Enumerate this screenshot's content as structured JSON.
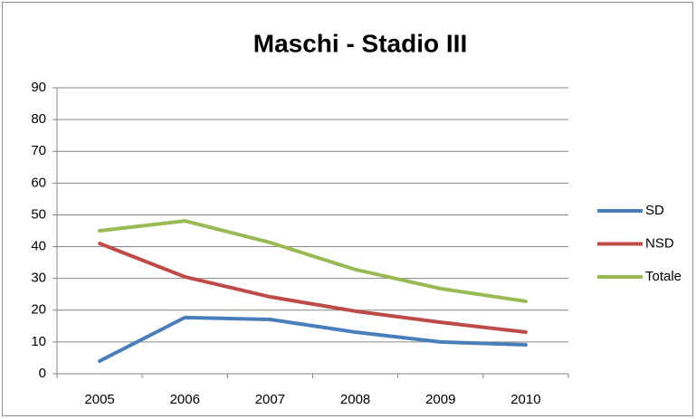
{
  "chart_data": {
    "type": "line",
    "title": "Maschi - Stadio III",
    "categories": [
      "2005",
      "2006",
      "2007",
      "2008",
      "2009",
      "2010"
    ],
    "series": [
      {
        "name": "SD",
        "color": "#4a7ebb",
        "values": [
          4,
          17.7,
          17.1,
          13.1,
          10,
          9.1
        ]
      },
      {
        "name": "NSD",
        "color": "#be4b48",
        "values": [
          41,
          30.5,
          24.2,
          19.7,
          16.2,
          13.1
        ]
      },
      {
        "name": "Totale",
        "color": "#98b954",
        "values": [
          45,
          48.1,
          41.3,
          32.8,
          26.8,
          22.8
        ]
      }
    ],
    "ylim": [
      0,
      90
    ],
    "yticks": [
      0,
      10,
      20,
      30,
      40,
      50,
      60,
      70,
      80,
      90
    ],
    "grid": true,
    "legend": "right"
  }
}
